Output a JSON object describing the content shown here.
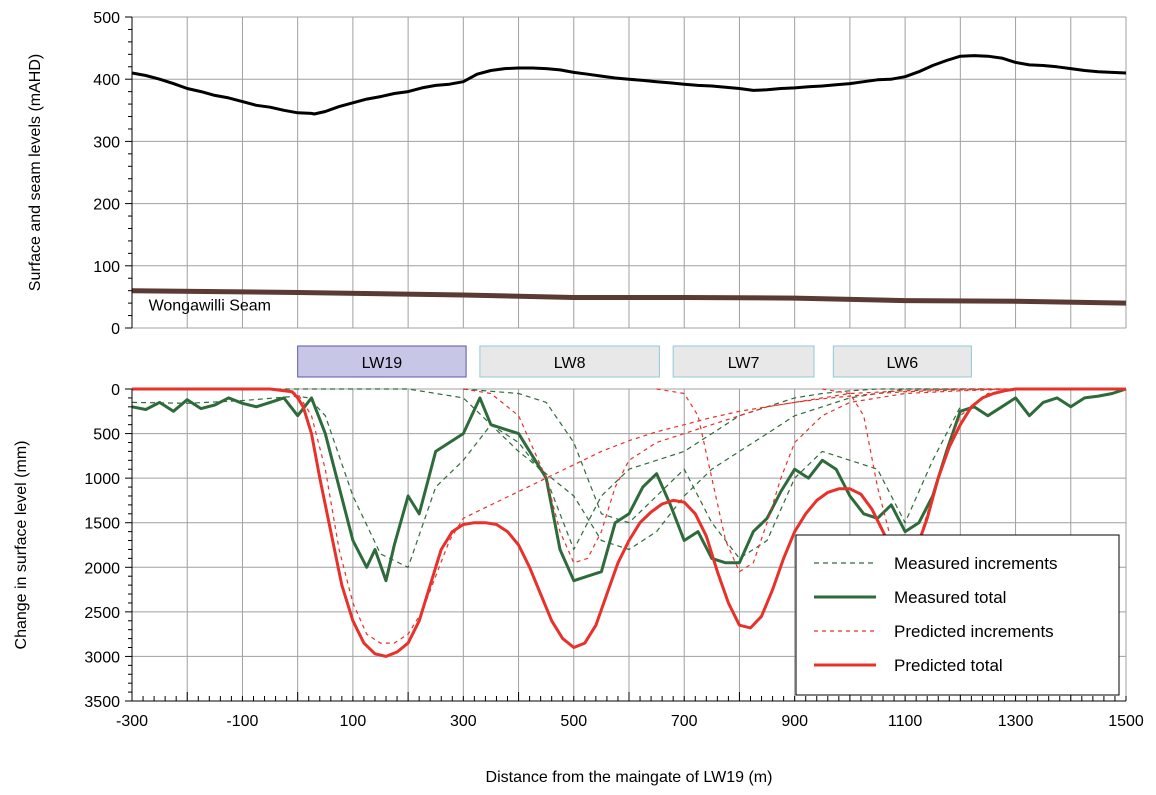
{
  "chart_data": [
    {
      "type": "line",
      "ylabel": "Surface and seam levels (mAHD)",
      "xlim": [
        -300,
        1500
      ],
      "ylim": [
        0,
        500
      ],
      "yticks": [
        0,
        100,
        200,
        300,
        400,
        500
      ],
      "grid": true,
      "annotations": [
        {
          "text": "Wongawilli Seam",
          "x": -270,
          "y": 28
        }
      ],
      "series": [
        {
          "color": "#000000",
          "x": [
            -300,
            -275,
            -250,
            -225,
            -200,
            -175,
            -150,
            -125,
            -100,
            -75,
            -50,
            -25,
            0,
            25,
            30,
            50,
            75,
            100,
            125,
            150,
            175,
            200,
            225,
            250,
            275,
            300,
            325,
            350,
            375,
            400,
            425,
            450,
            475,
            500,
            525,
            550,
            575,
            600,
            625,
            650,
            675,
            700,
            725,
            750,
            775,
            800,
            825,
            850,
            875,
            900,
            925,
            950,
            975,
            1000,
            1025,
            1050,
            1075,
            1100,
            1125,
            1150,
            1175,
            1200,
            1225,
            1250,
            1275,
            1300,
            1325,
            1350,
            1375,
            1400,
            1425,
            1450,
            1475,
            1500
          ],
          "y": [
            410,
            406,
            400,
            393,
            385,
            380,
            374,
            370,
            364,
            358,
            355,
            350,
            346,
            345,
            344,
            348,
            356,
            362,
            368,
            372,
            377,
            380,
            386,
            390,
            392,
            396,
            408,
            414,
            417,
            418,
            418,
            417,
            415,
            411,
            408,
            405,
            402,
            400,
            398,
            396,
            394,
            392,
            390,
            389,
            387,
            385,
            382,
            383,
            385,
            386,
            388,
            389,
            391,
            393,
            396,
            399,
            400,
            404,
            412,
            422,
            430,
            437,
            438,
            437,
            434,
            427,
            423,
            422,
            420,
            417,
            414,
            412,
            411,
            410
          ]
        },
        {
          "color": "#5a3a33",
          "x": [
            -300,
            0,
            300,
            500,
            700,
            900,
            1100,
            1300,
            1500
          ],
          "y": [
            60,
            57,
            53,
            49,
            49,
            48,
            44,
            43,
            40
          ]
        }
      ]
    },
    {
      "type": "line",
      "xlabel": "Distance from the maingate of LW19 (m)",
      "ylabel": "Change in surface level (mm)",
      "xlim": [
        -300,
        1500
      ],
      "ylim": [
        3500,
        0
      ],
      "xticks": [
        -300,
        -100,
        100,
        300,
        500,
        700,
        900,
        1100,
        1300,
        1500
      ],
      "yticks": [
        0,
        500,
        1000,
        1500,
        2000,
        2500,
        3000,
        3500
      ],
      "grid": true,
      "legend": "bottom-right",
      "panels": [
        {
          "label": "LW19",
          "x1": 0,
          "x2": 305,
          "fill": "#c8c6e6",
          "stroke": "#5a56a8"
        },
        {
          "label": "LW8",
          "x1": 330,
          "x2": 655,
          "fill": "#e8e8e8",
          "stroke": "#8fc9d8"
        },
        {
          "label": "LW7",
          "x1": 680,
          "x2": 935,
          "fill": "#e8e8e8",
          "stroke": "#8fc9d8"
        },
        {
          "label": "LW6",
          "x1": 970,
          "x2": 1220,
          "fill": "#e8e8e8",
          "stroke": "#8fc9d8"
        }
      ],
      "series": [
        {
          "name": "Measured increments",
          "color": "#2e6b3a",
          "dash": "5,4",
          "lines": [
            {
              "x": [
                -300,
                -200,
                -100,
                0,
                20,
                50,
                100,
                150,
                200,
                250,
                300,
                350,
                400,
                450,
                500,
                550,
                600,
                650,
                700,
                750,
                800,
                850,
                900,
                950,
                1000,
                1050,
                1100,
                1150,
                1200,
                1250
              ],
              "y": [
                150,
                160,
                130,
                80,
                100,
                300,
                1200,
                1850,
                2000,
                1100,
                800,
                400,
                600,
                1000,
                1800,
                1200,
                900,
                800,
                700,
                500,
                300,
                200,
                100,
                50,
                20,
                0,
                0,
                0,
                0,
                0
              ]
            },
            {
              "x": [
                -300,
                0,
                100,
                200,
                300,
                400,
                500,
                550,
                600,
                650,
                700,
                750,
                800,
                850,
                900,
                950,
                1000,
                1050,
                1100,
                1150,
                1200,
                1300,
                1500
              ],
              "y": [
                0,
                0,
                0,
                0,
                100,
                700,
                1200,
                1700,
                1800,
                1600,
                1200,
                900,
                700,
                500,
                300,
                200,
                100,
                50,
                0,
                0,
                0,
                0,
                0
              ]
            },
            {
              "x": [
                300,
                400,
                450,
                500,
                550,
                600,
                650,
                700,
                750,
                800,
                850,
                900,
                950,
                1000,
                1050,
                1100,
                1150,
                1200
              ],
              "y": [
                0,
                50,
                150,
                600,
                1400,
                1500,
                1200,
                900,
                1500,
                1900,
                1700,
                1000,
                700,
                800,
                900,
                1500,
                800,
                200
              ]
            }
          ]
        },
        {
          "name": "Measured total",
          "color": "#2e6b3a",
          "dash": "",
          "lines": [
            {
              "x": [
                -300,
                -275,
                -250,
                -225,
                -200,
                -175,
                -150,
                -125,
                -100,
                -75,
                -50,
                -25,
                0,
                25,
                50,
                75,
                100,
                125,
                140,
                160,
                175,
                200,
                220,
                250,
                275,
                300,
                330,
                350,
                400,
                450,
                475,
                500,
                525,
                550,
                575,
                600,
                625,
                650,
                675,
                700,
                725,
                750,
                775,
                800,
                825,
                850,
                875,
                900,
                925,
                950,
                975,
                1000,
                1025,
                1050,
                1075,
                1100,
                1125,
                1150,
                1175,
                1200,
                1225,
                1250,
                1275,
                1300,
                1325,
                1350,
                1375,
                1400,
                1425,
                1450,
                1475,
                1500
              ],
              "y": [
                200,
                230,
                150,
                250,
                120,
                220,
                180,
                100,
                160,
                200,
                150,
                100,
                300,
                100,
                500,
                1100,
                1700,
                2000,
                1800,
                2150,
                1750,
                1200,
                1400,
                700,
                600,
                500,
                100,
                400,
                500,
                1000,
                1800,
                2150,
                2100,
                2050,
                1500,
                1400,
                1100,
                950,
                1300,
                1700,
                1600,
                1900,
                1950,
                1950,
                1600,
                1450,
                1150,
                900,
                1000,
                800,
                900,
                1200,
                1400,
                1450,
                1300,
                1600,
                1500,
                1200,
                700,
                250,
                200,
                300,
                200,
                100,
                300,
                150,
                100,
                200,
                100,
                80,
                50,
                0
              ]
            }
          ]
        },
        {
          "name": "Predicted increments",
          "color": "#e8312a",
          "dash": "4,4",
          "lines": [
            {
              "x": [
                -300,
                -50,
                0,
                25,
                50,
                75,
                100,
                125,
                150,
                175,
                200,
                225,
                250,
                275,
                300,
                350,
                400,
                450,
                500,
                550,
                600,
                650,
                700,
                750,
                800,
                850,
                900,
                950,
                1000,
                1050,
                1100,
                1200,
                1300,
                1500
              ],
              "y": [
                0,
                0,
                50,
                300,
                900,
                1800,
                2400,
                2750,
                2850,
                2850,
                2750,
                2500,
                2100,
                1700,
                1450,
                1300,
                1150,
                1000,
                850,
                700,
                580,
                480,
                400,
                320,
                250,
                200,
                150,
                110,
                80,
                50,
                30,
                10,
                0,
                0
              ]
            },
            {
              "x": [
                300,
                350,
                400,
                450,
                475,
                500,
                525,
                550,
                575,
                600,
                650,
                700,
                750,
                800,
                850,
                900,
                950,
                1000,
                1100,
                1200,
                1300,
                1500
              ],
              "y": [
                0,
                50,
                300,
                1000,
                1600,
                1950,
                1900,
                1600,
                1100,
                800,
                600,
                500,
                400,
                300,
                200,
                150,
                100,
                50,
                20,
                0,
                0,
                0
              ]
            },
            {
              "x": [
                650,
                700,
                725,
                750,
                775,
                800,
                825,
                850,
                875,
                900,
                950,
                1000,
                1100,
                1200,
                1300,
                1500
              ],
              "y": [
                0,
                50,
                300,
                1000,
                1700,
                2050,
                1950,
                1500,
                1000,
                600,
                300,
                150,
                50,
                20,
                0,
                0
              ]
            },
            {
              "x": [
                950,
                1000,
                1025,
                1050,
                1075,
                1100,
                1125,
                1150,
                1175,
                1200,
                1250,
                1300,
                1500
              ],
              "y": [
                0,
                50,
                300,
                1100,
                1700,
                1900,
                1700,
                1200,
                700,
                300,
                50,
                0,
                0
              ]
            }
          ]
        },
        {
          "name": "Predicted total",
          "color": "#e8312a",
          "dash": "",
          "lines": [
            {
              "x": [
                -300,
                -50,
                -10,
                0,
                10,
                25,
                40,
                60,
                80,
                100,
                120,
                140,
                160,
                180,
                200,
                220,
                240,
                260,
                280,
                300,
                320,
                340,
                360,
                380,
                400,
                420,
                440,
                460,
                480,
                500,
                520,
                540,
                560,
                580,
                600,
                620,
                640,
                660,
                680,
                700,
                720,
                740,
                760,
                780,
                800,
                820,
                840,
                860,
                880,
                900,
                920,
                940,
                960,
                980,
                1000,
                1020,
                1040,
                1060,
                1080,
                1100,
                1120,
                1140,
                1160,
                1180,
                1200,
                1220,
                1240,
                1260,
                1280,
                1300,
                1350,
                1400,
                1450,
                1500
              ],
              "y": [
                0,
                0,
                30,
                100,
                200,
                500,
                1000,
                1600,
                2200,
                2600,
                2850,
                2970,
                3000,
                2950,
                2850,
                2600,
                2200,
                1800,
                1600,
                1520,
                1500,
                1500,
                1520,
                1600,
                1750,
                2000,
                2300,
                2600,
                2800,
                2900,
                2850,
                2650,
                2300,
                1950,
                1700,
                1500,
                1380,
                1290,
                1250,
                1270,
                1400,
                1650,
                2050,
                2400,
                2650,
                2680,
                2550,
                2250,
                1900,
                1600,
                1400,
                1250,
                1160,
                1120,
                1120,
                1180,
                1350,
                1600,
                1850,
                1950,
                1800,
                1450,
                1000,
                650,
                400,
                200,
                100,
                50,
                20,
                0,
                0,
                0,
                0,
                0
              ]
            }
          ]
        }
      ]
    }
  ]
}
